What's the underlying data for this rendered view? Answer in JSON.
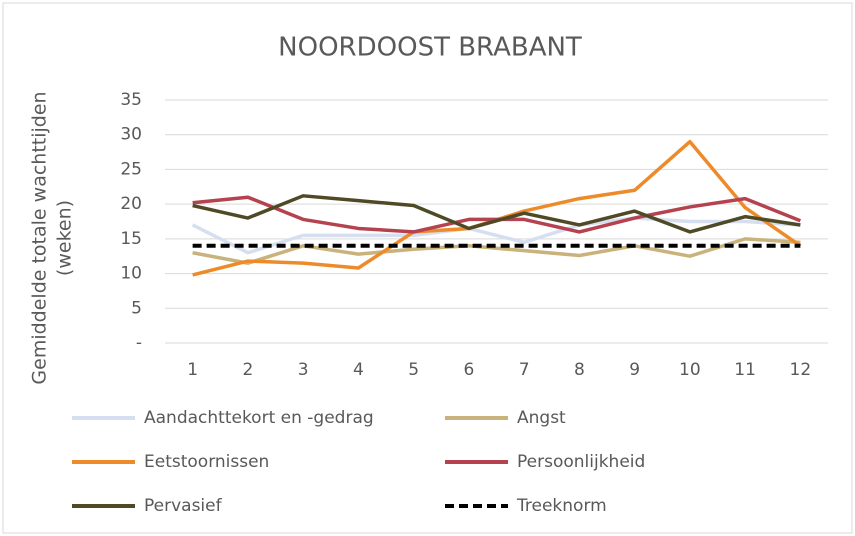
{
  "chart_data": {
    "type": "line",
    "title": "NOORDOOST BRABANT",
    "y_label": [
      "Gemiddelde totale wachttijden",
      "(weken)"
    ],
    "categories": [
      "1",
      "2",
      "3",
      "4",
      "5",
      "6",
      "7",
      "8",
      "9",
      "10",
      "11",
      "12"
    ],
    "ylim": [
      0,
      35
    ],
    "yticks": [
      {
        "value": 0,
        "label": "-"
      },
      5,
      10,
      15,
      20,
      25,
      30,
      35
    ],
    "grid": true,
    "series": [
      {
        "name": "Aandachttekort en -gedrag",
        "color": "#d6dff0",
        "values": [
          17,
          13,
          15.5,
          15.5,
          15.5,
          16.5,
          14.5,
          17,
          18,
          17.5,
          17.5,
          17
        ]
      },
      {
        "name": "Angst",
        "color": "#c9b27c",
        "values": [
          13,
          11.5,
          14,
          12.8,
          13.5,
          14,
          13.3,
          12.6,
          14,
          12.5,
          15,
          14.5
        ]
      },
      {
        "name": "Eetstoornissen",
        "color": "#ed8b2b",
        "values": [
          9.8,
          11.8,
          11.5,
          10.8,
          16,
          16.5,
          19,
          20.8,
          22,
          29,
          19.5,
          14
        ]
      },
      {
        "name": "Persoonlijkheid",
        "color": "#b5424f",
        "values": [
          20.2,
          21,
          17.8,
          16.5,
          16,
          17.8,
          17.8,
          16,
          18,
          19.6,
          20.8,
          17.6
        ]
      },
      {
        "name": "Pervasief",
        "color": "#4f4a25",
        "values": [
          19.8,
          18,
          21.2,
          20.5,
          19.8,
          16.5,
          18.7,
          17,
          19,
          16,
          18.2,
          17
        ]
      },
      {
        "name": "Treeknorm",
        "color": "#000000",
        "dashed": true,
        "values": [
          14,
          14,
          14,
          14,
          14,
          14,
          14,
          14,
          14,
          14,
          14,
          14
        ]
      }
    ]
  }
}
